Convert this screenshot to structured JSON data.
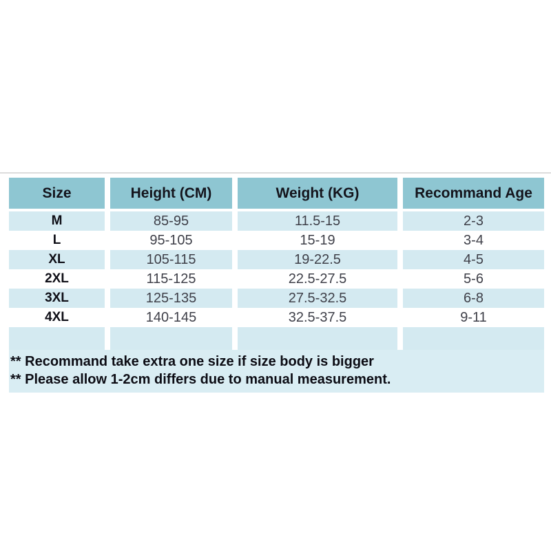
{
  "chart_data": {
    "type": "table",
    "columns": [
      "Size",
      "Height (CM)",
      "Weight (KG)",
      "Recommand Age"
    ],
    "rows": [
      [
        "M",
        "85-95",
        "11.5-15",
        "2-3"
      ],
      [
        "L",
        "95-105",
        "15-19",
        "3-4"
      ],
      [
        "XL",
        "105-115",
        "19-22.5",
        "4-5"
      ],
      [
        "2XL",
        "115-125",
        "22.5-27.5",
        "5-6"
      ],
      [
        "3XL",
        "125-135",
        "27.5-32.5",
        "6-8"
      ],
      [
        "4XL",
        "140-145",
        "32.5-37.5",
        "9-11"
      ]
    ]
  },
  "notes": [
    "** Recommand take extra one size if size body is bigger",
    "** Please allow 1-2cm differs due to manual measurement."
  ],
  "colors": {
    "header_bg": "#8ec6d2",
    "row_alt_bg": "#d4eaf1",
    "row_bg": "#ffffff",
    "notes_bg": "#d9edf3",
    "header_text": "#14141c",
    "size_text": "#0e0e16",
    "value_text": "#3e3f48",
    "notes_text": "#0c0c14",
    "divider": "#dcdcdc"
  }
}
